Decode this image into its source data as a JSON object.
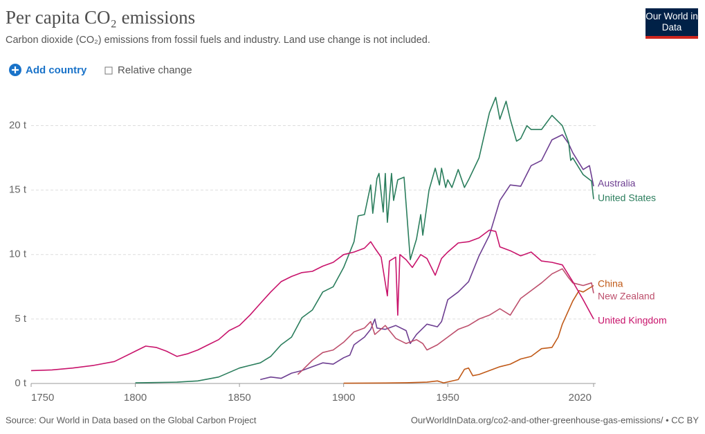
{
  "chart_data": {
    "type": "line",
    "title": "Per capita CO₂ emissions",
    "subtitle": "Carbon dioxide (CO₂) emissions from fossil fuels and industry. Land use change is not included.",
    "logo": "Our World in Data",
    "add_country": "Add country",
    "relative_change": "Relative change",
    "source": "Source: Our World in Data based on the Global Carbon Project",
    "url": "OurWorldInData.org/co2-and-other-greenhouse-gas-emissions/ • CC BY",
    "xlim": [
      1750,
      2021
    ],
    "xticks": [
      1750,
      1800,
      1850,
      1900,
      1950,
      2020
    ],
    "ylim": [
      0,
      22.5
    ],
    "yticks": [
      {
        "value": 0,
        "label": "0 t"
      },
      {
        "value": 5,
        "label": "5 t"
      },
      {
        "value": 10,
        "label": "10 t"
      },
      {
        "value": 15,
        "label": "15 t"
      },
      {
        "value": 20,
        "label": "20 t"
      }
    ],
    "grid": true,
    "series": [
      {
        "name": "Australia",
        "color": "#6d3e91",
        "x": [
          1860,
          1865,
          1870,
          1875,
          1880,
          1885,
          1890,
          1895,
          1900,
          1903,
          1905,
          1910,
          1913,
          1915,
          1916,
          1920,
          1925,
          1930,
          1932,
          1935,
          1940,
          1945,
          1947,
          1950,
          1955,
          1960,
          1965,
          1970,
          1975,
          1980,
          1985,
          1990,
          1995,
          2000,
          2005,
          2008,
          2010,
          2015,
          2018,
          2020
        ],
        "values": [
          0.3,
          0.5,
          0.4,
          0.8,
          1.0,
          1.3,
          1.6,
          1.5,
          2.0,
          2.2,
          3.0,
          3.6,
          4.2,
          5.0,
          4.3,
          4.2,
          4.5,
          4.1,
          3.1,
          3.8,
          4.6,
          4.4,
          4.8,
          6.5,
          7.1,
          7.9,
          9.9,
          11.5,
          14.2,
          15.4,
          15.3,
          16.9,
          17.3,
          18.9,
          19.3,
          18.6,
          17.9,
          16.6,
          16.9,
          15.3
        ]
      },
      {
        "name": "United States",
        "color": "#2a7d5c",
        "x": [
          1800,
          1820,
          1830,
          1840,
          1850,
          1855,
          1860,
          1865,
          1870,
          1875,
          1880,
          1885,
          1890,
          1895,
          1900,
          1905,
          1907,
          1910,
          1913,
          1914,
          1916,
          1917,
          1919,
          1920,
          1921,
          1923,
          1924,
          1926,
          1929,
          1930,
          1932,
          1935,
          1937,
          1938,
          1941,
          1944,
          1946,
          1947,
          1949,
          1950,
          1952,
          1955,
          1958,
          1960,
          1965,
          1970,
          1973,
          1975,
          1978,
          1980,
          1983,
          1985,
          1988,
          1990,
          1995,
          2000,
          2005,
          2008,
          2009,
          2010,
          2015,
          2019,
          2020
        ],
        "values": [
          0.05,
          0.1,
          0.2,
          0.5,
          1.2,
          1.4,
          1.6,
          2.1,
          3.0,
          3.6,
          5.1,
          5.7,
          7.1,
          7.5,
          9.0,
          11.0,
          13.0,
          13.1,
          15.4,
          13.2,
          15.9,
          16.3,
          13.3,
          16.3,
          12.5,
          16.3,
          14.2,
          15.8,
          16.0,
          13.9,
          9.6,
          11.2,
          13.1,
          11.5,
          15.0,
          16.7,
          15.4,
          16.7,
          15.2,
          15.8,
          15.2,
          16.6,
          15.2,
          15.8,
          17.5,
          21.0,
          22.2,
          20.5,
          21.9,
          20.5,
          18.8,
          19.0,
          20.0,
          19.7,
          19.7,
          20.8,
          20.0,
          18.7,
          17.3,
          17.5,
          16.2,
          15.7,
          14.3
        ]
      },
      {
        "name": "China",
        "color": "#c05917",
        "x": [
          1900,
          1920,
          1930,
          1940,
          1945,
          1948,
          1955,
          1958,
          1960,
          1962,
          1965,
          1970,
          1975,
          1980,
          1985,
          1990,
          1995,
          2000,
          2003,
          2005,
          2010,
          2013,
          2015,
          2020
        ],
        "values": [
          0.02,
          0.04,
          0.06,
          0.1,
          0.2,
          0.05,
          0.3,
          1.1,
          1.2,
          0.6,
          0.7,
          1.0,
          1.3,
          1.5,
          1.9,
          2.1,
          2.7,
          2.8,
          3.6,
          4.6,
          6.4,
          7.2,
          7.1,
          7.6
        ]
      },
      {
        "name": "New Zealand",
        "color": "#bd4f6c",
        "x": [
          1878,
          1880,
          1885,
          1890,
          1895,
          1900,
          1905,
          1910,
          1913,
          1915,
          1920,
          1925,
          1930,
          1935,
          1938,
          1940,
          1945,
          1950,
          1955,
          1960,
          1965,
          1970,
          1975,
          1980,
          1985,
          1990,
          1995,
          2000,
          2005,
          2008,
          2010,
          2015,
          2019,
          2020
        ],
        "values": [
          0.7,
          1.0,
          1.8,
          2.4,
          2.6,
          3.2,
          4.0,
          4.3,
          4.8,
          3.8,
          4.5,
          3.5,
          3.1,
          3.4,
          3.1,
          2.6,
          3.0,
          3.6,
          4.2,
          4.5,
          5.0,
          5.3,
          5.8,
          5.3,
          6.6,
          7.2,
          7.8,
          8.5,
          8.9,
          8.2,
          7.8,
          7.6,
          7.8,
          7.0
        ]
      },
      {
        "name": "United Kingdom",
        "color": "#c8136b",
        "x": [
          1750,
          1760,
          1770,
          1780,
          1790,
          1800,
          1805,
          1810,
          1815,
          1820,
          1825,
          1830,
          1835,
          1840,
          1845,
          1850,
          1855,
          1860,
          1865,
          1870,
          1875,
          1880,
          1885,
          1890,
          1895,
          1900,
          1905,
          1910,
          1913,
          1915,
          1918,
          1921,
          1922,
          1925,
          1926,
          1927,
          1930,
          1933,
          1937,
          1940,
          1944,
          1947,
          1950,
          1955,
          1960,
          1965,
          1970,
          1973,
          1975,
          1980,
          1985,
          1990,
          1995,
          2000,
          2005,
          2010,
          2015,
          2020
        ],
        "values": [
          1.0,
          1.05,
          1.2,
          1.4,
          1.7,
          2.5,
          2.9,
          2.8,
          2.5,
          2.1,
          2.3,
          2.6,
          3.0,
          3.4,
          4.1,
          4.5,
          5.3,
          6.2,
          7.1,
          7.9,
          8.3,
          8.6,
          8.7,
          9.1,
          9.4,
          10.0,
          10.2,
          10.5,
          11.0,
          10.5,
          9.8,
          6.8,
          9.5,
          9.8,
          5.3,
          10.0,
          9.6,
          9.0,
          10.0,
          9.7,
          8.4,
          9.7,
          10.2,
          10.9,
          11.0,
          11.3,
          11.9,
          11.8,
          10.6,
          10.3,
          9.9,
          10.2,
          9.5,
          9.4,
          9.2,
          7.9,
          6.5,
          5.0
        ]
      }
    ]
  }
}
